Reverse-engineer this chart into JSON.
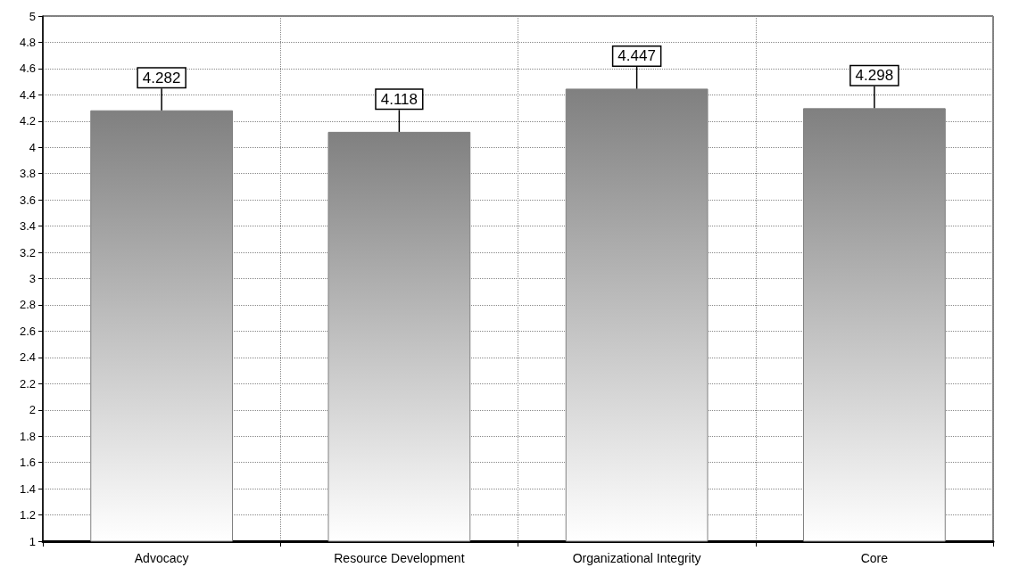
{
  "chart_data": {
    "type": "bar",
    "categories": [
      "Advocacy",
      "Resource Development",
      "Organizational Integrity",
      "Core"
    ],
    "values": [
      4.282,
      4.118,
      4.447,
      4.298
    ],
    "color": "#808080",
    "ylim": [
      1,
      5
    ],
    "yticks": [
      1,
      1.2,
      1.4,
      1.6,
      1.8,
      2,
      2.2,
      2.4,
      2.6,
      2.8,
      3,
      3.2,
      3.4,
      3.6,
      3.8,
      4,
      4.2,
      4.4,
      4.6,
      4.8,
      5
    ],
    "grid": true,
    "data_labels": true
  }
}
